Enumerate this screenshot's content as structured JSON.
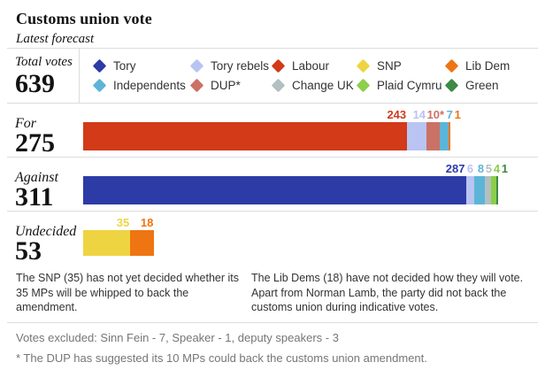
{
  "header": {
    "title": "Customs union vote",
    "subtitle": "Latest forecast"
  },
  "totals": {
    "label": "Total votes",
    "value": "639"
  },
  "legend": {
    "items": [
      {
        "name": "Tory",
        "color": "#2d3ba6"
      },
      {
        "name": "Tory rebels",
        "color": "#b9c4f2"
      },
      {
        "name": "Labour",
        "color": "#d23a18"
      },
      {
        "name": "SNP",
        "color": "#efd442"
      },
      {
        "name": "Lib Dem",
        "color": "#ee7512"
      },
      {
        "name": "Independents",
        "color": "#5cb5d7"
      },
      {
        "name": "DUP*",
        "color": "#cc7166"
      },
      {
        "name": "Change UK",
        "color": "#b3bfc1"
      },
      {
        "name": "Plaid Cymru",
        "color": "#8ccf4a"
      },
      {
        "name": "Green",
        "color": "#3c8a43"
      }
    ]
  },
  "chart_data": {
    "type": "bar",
    "title": "Customs union vote",
    "subtitle": "Latest forecast",
    "total_votes": 639,
    "scale_max": 311,
    "bars": [
      {
        "label": "For",
        "total": "275",
        "segments": [
          {
            "party": "Labour",
            "value": 243,
            "display": "243",
            "color": "#d23a18"
          },
          {
            "party": "Tory rebels",
            "value": 14,
            "display": "14",
            "color": "#b9c4f2"
          },
          {
            "party": "DUP",
            "value": 10,
            "display": "10*",
            "color": "#cc7166"
          },
          {
            "party": "Independents",
            "value": 7,
            "display": "7",
            "color": "#5cb5d7"
          },
          {
            "party": "Lib Dem",
            "value": 1,
            "display": "1",
            "color": "#ee7512"
          }
        ]
      },
      {
        "label": "Against",
        "total": "311",
        "segments": [
          {
            "party": "Tory",
            "value": 287,
            "display": "287",
            "color": "#2d3ba6"
          },
          {
            "party": "Tory rebels",
            "value": 6,
            "display": "6",
            "color": "#b9c4f2"
          },
          {
            "party": "Independents",
            "value": 8,
            "display": "8",
            "color": "#5cb5d7"
          },
          {
            "party": "Change UK",
            "value": 5,
            "display": "5",
            "color": "#b3bfc1"
          },
          {
            "party": "Plaid Cymru",
            "value": 4,
            "display": "4",
            "color": "#8ccf4a"
          },
          {
            "party": "Green",
            "value": 1,
            "display": "1",
            "color": "#3c8a43"
          }
        ]
      },
      {
        "label": "Undecided",
        "total": "53",
        "segments": [
          {
            "party": "SNP",
            "value": 35,
            "display": "35",
            "color": "#efd442"
          },
          {
            "party": "Lib Dem",
            "value": 18,
            "display": "18",
            "color": "#ee7512"
          }
        ]
      }
    ]
  },
  "notes": {
    "snp": "The SNP (35) has not yet decided whether its 35 MPs will be whipped to back the amendment.",
    "libdem": "The Lib Dems (18) have not decided how they will vote. Apart from Norman Lamb, the party did not back the customs union during indicative votes."
  },
  "footer": {
    "excluded": "Votes excluded: Sinn Fein - 7, Speaker - 1, deputy speakers - 3",
    "dup_note": "* The DUP has suggested its 10 MPs could back the customs union amendment."
  }
}
